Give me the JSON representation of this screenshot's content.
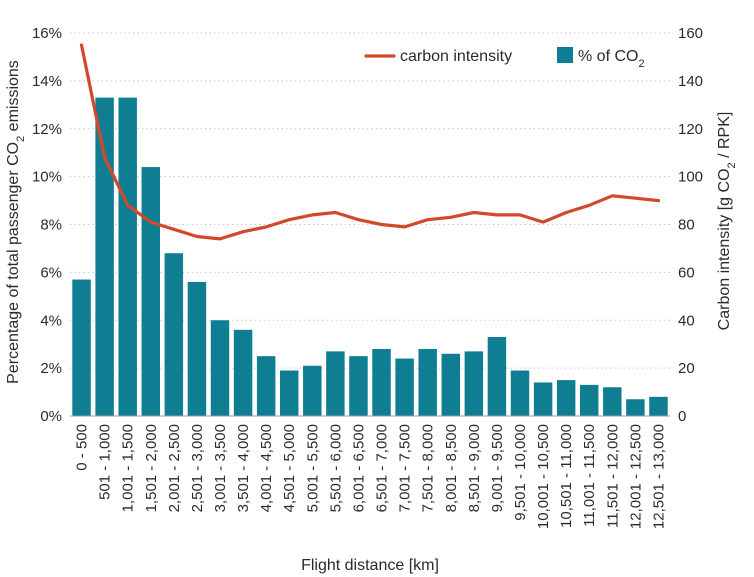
{
  "chart_data": {
    "type": "bar",
    "categories": [
      "0 - 500",
      "501 - 1,000",
      "1,001 - 1,500",
      "1,501 - 2,000",
      "2,001 - 2,500",
      "2,501 - 3,000",
      "3,001 - 3,500",
      "3,501 - 4,000",
      "4,001 - 4,500",
      "4,501 - 5,000",
      "5,001 - 5,500",
      "5,501 - 6,000",
      "6,001 - 6,500",
      "6,501 - 7,000",
      "7,001 - 7,500",
      "7,501 - 8,000",
      "8,001 - 8,500",
      "8,501 - 9,000",
      "9,001 - 9,500",
      "9,501 - 10,000",
      "10,001 - 10,500",
      "10,501 - 11,000",
      "11,001 - 11,500",
      "11,501 - 12,000",
      "12,001 - 12,500",
      "12,501 - 13,000"
    ],
    "series": [
      {
        "name": "% of CO2",
        "kind": "bar",
        "axis": "left",
        "color": "#0f7d92",
        "values": [
          5.7,
          13.3,
          13.3,
          10.4,
          6.8,
          5.6,
          4.0,
          3.6,
          2.5,
          1.9,
          2.1,
          2.7,
          2.5,
          2.8,
          2.4,
          2.8,
          2.6,
          2.7,
          3.3,
          1.9,
          1.4,
          1.5,
          1.3,
          1.2,
          0.7,
          0.8
        ]
      },
      {
        "name": "carbon intensity",
        "kind": "line",
        "axis": "right",
        "color": "#d2492a",
        "values": [
          155,
          108,
          88,
          81,
          78,
          75,
          74,
          77,
          79,
          82,
          84,
          85,
          82,
          80,
          79,
          82,
          83,
          85,
          84,
          84,
          81,
          85,
          88,
          92,
          91,
          90
        ]
      }
    ],
    "xlabel": "Flight distance [km]",
    "ylabel_left": "Percentage of total passenger CO2 emissions",
    "ylabel_right": "Carbon intensity [g CO2 / RPK]",
    "ylim_left": [
      0,
      16
    ],
    "yticks_left": [
      "0%",
      "2%",
      "4%",
      "6%",
      "8%",
      "10%",
      "12%",
      "14%",
      "16%"
    ],
    "ylim_right": [
      0,
      160
    ],
    "yticks_right": [
      "0",
      "20",
      "40",
      "60",
      "80",
      "100",
      "120",
      "140",
      "160"
    ],
    "legend": {
      "placement": "top-right",
      "line_label": "carbon intensity",
      "bar_label": "% of CO2"
    },
    "grid": "horizontal dotted"
  }
}
